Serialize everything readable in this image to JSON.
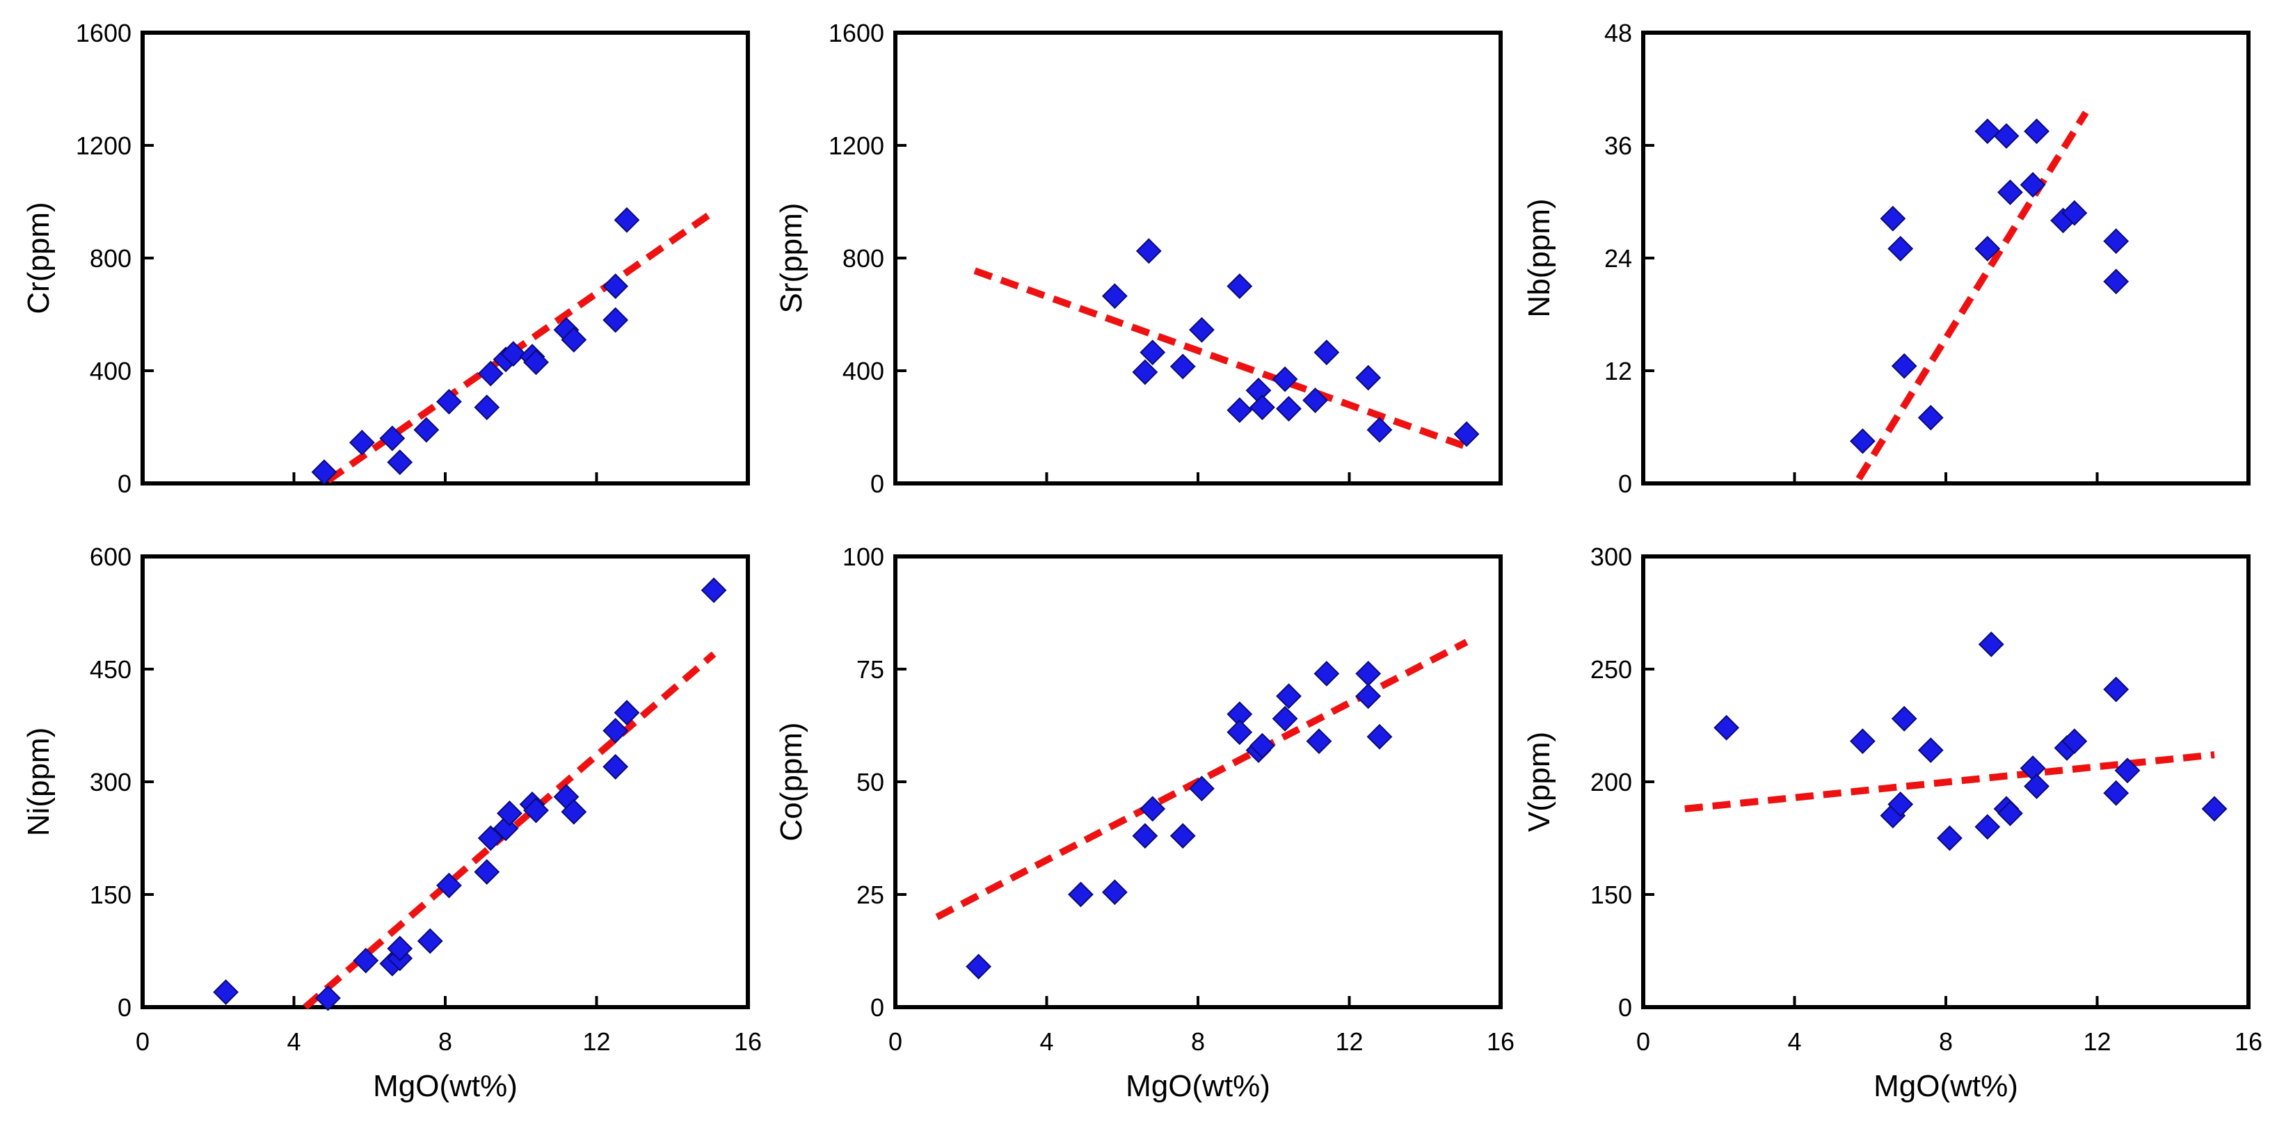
{
  "chart_data": [
    {
      "type": "scatter",
      "ylabel": "Cr(ppm)",
      "xlabel": "",
      "xlim": [
        0,
        16
      ],
      "ylim": [
        0,
        1600
      ],
      "xticks": [
        "0",
        "4",
        "8",
        "12",
        "16"
      ],
      "yticks": [
        "0",
        "400",
        "800",
        "1200",
        "1600"
      ],
      "x_tick_labels_shown": false,
      "points": [
        [
          4.8,
          40
        ],
        [
          5.8,
          145
        ],
        [
          6.6,
          160
        ],
        [
          6.8,
          75
        ],
        [
          7.5,
          190
        ],
        [
          8.1,
          290
        ],
        [
          9.1,
          270
        ],
        [
          9.2,
          390
        ],
        [
          9.6,
          440
        ],
        [
          9.8,
          460
        ],
        [
          10.3,
          450
        ],
        [
          10.4,
          430
        ],
        [
          11.2,
          545
        ],
        [
          11.4,
          510
        ],
        [
          12.5,
          580
        ],
        [
          12.5,
          700
        ],
        [
          12.8,
          935
        ]
      ],
      "trendline": [
        [
          4.9,
          10
        ],
        [
          15.1,
          965
        ]
      ]
    },
    {
      "type": "scatter",
      "ylabel": "Sr(ppm)",
      "xlabel": "",
      "xlim": [
        0,
        16
      ],
      "ylim": [
        0,
        1600
      ],
      "xticks": [
        "0",
        "4",
        "8",
        "12",
        "16"
      ],
      "yticks": [
        "0",
        "400",
        "800",
        "1200",
        "1600"
      ],
      "x_tick_labels_shown": false,
      "points": [
        [
          5.8,
          665
        ],
        [
          6.6,
          395
        ],
        [
          6.7,
          825
        ],
        [
          6.8,
          465
        ],
        [
          7.6,
          415
        ],
        [
          8.1,
          545
        ],
        [
          9.1,
          700
        ],
        [
          9.1,
          260
        ],
        [
          9.6,
          330
        ],
        [
          9.7,
          270
        ],
        [
          10.3,
          370
        ],
        [
          10.4,
          265
        ],
        [
          11.1,
          295
        ],
        [
          11.4,
          465
        ],
        [
          12.5,
          375
        ],
        [
          12.8,
          190
        ],
        [
          15.1,
          175
        ]
      ],
      "trendline": [
        [
          2.1,
          755
        ],
        [
          15.1,
          130
        ]
      ]
    },
    {
      "type": "scatter",
      "ylabel": "Nb(ppm)",
      "xlabel": "",
      "xlim": [
        0,
        16
      ],
      "ylim": [
        0,
        48
      ],
      "xticks": [
        "0",
        "4",
        "8",
        "12",
        "16"
      ],
      "yticks": [
        "0",
        "12",
        "24",
        "36",
        "48"
      ],
      "x_tick_labels_shown": false,
      "points": [
        [
          5.8,
          4.5
        ],
        [
          6.6,
          28.2
        ],
        [
          6.8,
          25.0
        ],
        [
          6.9,
          12.5
        ],
        [
          7.6,
          7.0
        ],
        [
          9.1,
          25.0
        ],
        [
          9.1,
          37.5
        ],
        [
          9.6,
          37.0
        ],
        [
          9.7,
          31.0
        ],
        [
          10.3,
          31.8
        ],
        [
          10.4,
          37.5
        ],
        [
          11.1,
          28.0
        ],
        [
          11.4,
          28.8
        ],
        [
          12.5,
          21.5
        ],
        [
          12.5,
          25.8
        ]
      ],
      "trendline": [
        [
          5.7,
          0.5
        ],
        [
          11.7,
          39.5
        ]
      ]
    },
    {
      "type": "scatter",
      "ylabel": "Ni(ppm)",
      "xlabel": "MgO(wt%)",
      "xlim": [
        0,
        16
      ],
      "ylim": [
        0,
        600
      ],
      "xticks": [
        "0",
        "4",
        "8",
        "12",
        "16"
      ],
      "yticks": [
        "0",
        "150",
        "300",
        "450",
        "600"
      ],
      "x_tick_labels_shown": true,
      "points": [
        [
          2.2,
          20
        ],
        [
          4.9,
          12
        ],
        [
          5.9,
          62
        ],
        [
          6.6,
          58
        ],
        [
          6.8,
          65
        ],
        [
          6.8,
          78
        ],
        [
          7.6,
          88
        ],
        [
          8.1,
          162
        ],
        [
          9.1,
          180
        ],
        [
          9.2,
          225
        ],
        [
          9.6,
          238
        ],
        [
          9.7,
          258
        ],
        [
          10.3,
          270
        ],
        [
          10.4,
          262
        ],
        [
          11.2,
          280
        ],
        [
          11.4,
          260
        ],
        [
          12.5,
          320
        ],
        [
          12.5,
          368
        ],
        [
          12.8,
          392
        ],
        [
          15.1,
          555
        ]
      ],
      "trendline": [
        [
          4.3,
          0
        ],
        [
          15.1,
          470
        ]
      ]
    },
    {
      "type": "scatter",
      "ylabel": "Co(ppm)",
      "xlabel": "MgO(wt%)",
      "xlim": [
        0,
        16
      ],
      "ylim": [
        0,
        100
      ],
      "xticks": [
        "0",
        "4",
        "8",
        "12",
        "16"
      ],
      "yticks": [
        "0",
        "25",
        "50",
        "75",
        "100"
      ],
      "x_tick_labels_shown": true,
      "points": [
        [
          2.2,
          9
        ],
        [
          4.9,
          25
        ],
        [
          5.8,
          25.5
        ],
        [
          6.6,
          38
        ],
        [
          6.8,
          44
        ],
        [
          7.6,
          38
        ],
        [
          8.1,
          48.5
        ],
        [
          9.1,
          65
        ],
        [
          9.1,
          61
        ],
        [
          9.6,
          57
        ],
        [
          9.7,
          58
        ],
        [
          10.3,
          64
        ],
        [
          10.4,
          69
        ],
        [
          11.2,
          59
        ],
        [
          11.4,
          74
        ],
        [
          12.5,
          74
        ],
        [
          12.5,
          69
        ],
        [
          12.8,
          60
        ]
      ],
      "trendline": [
        [
          1.1,
          20
        ],
        [
          15.1,
          81
        ]
      ]
    },
    {
      "type": "scatter",
      "ylabel": "V(ppm)",
      "xlabel": "MgO(wt%)",
      "xlim": [
        0,
        16
      ],
      "ylim": [
        0,
        300
      ],
      "yscale_note": "axis has a break: ticks 0, 150, 200, 250, 300 are evenly spaced",
      "xticks": [
        "0",
        "4",
        "8",
        "12",
        "16"
      ],
      "yticks": [
        "0",
        "150",
        "200",
        "250",
        "300"
      ],
      "x_tick_labels_shown": true,
      "points": [
        [
          2.2,
          224
        ],
        [
          5.8,
          218
        ],
        [
          6.6,
          185
        ],
        [
          6.8,
          190
        ],
        [
          6.9,
          228
        ],
        [
          7.6,
          214
        ],
        [
          8.1,
          175
        ],
        [
          9.1,
          180
        ],
        [
          9.2,
          261
        ],
        [
          9.6,
          188
        ],
        [
          9.7,
          186
        ],
        [
          10.3,
          206
        ],
        [
          10.4,
          198
        ],
        [
          11.2,
          215
        ],
        [
          11.4,
          218
        ],
        [
          12.5,
          195
        ],
        [
          12.5,
          241
        ],
        [
          12.8,
          205
        ],
        [
          15.1,
          188
        ]
      ],
      "trendline": [
        [
          1.1,
          188
        ],
        [
          15.1,
          212
        ]
      ]
    }
  ]
}
